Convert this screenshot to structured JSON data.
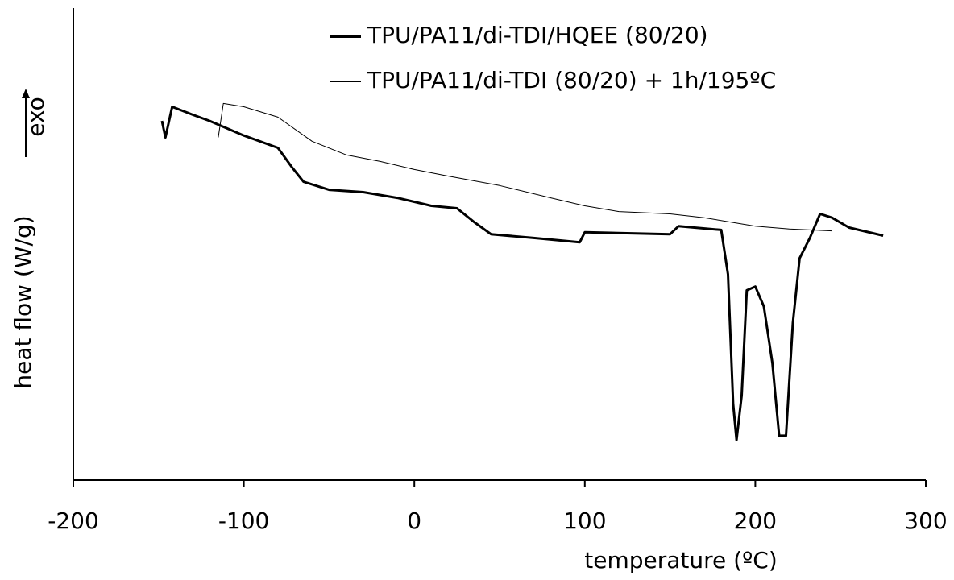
{
  "chart_data": {
    "type": "line",
    "xlabel": "temperature (ºC)",
    "ylabel": "heat flow (W/g)",
    "annotation": "exo",
    "xlim": [
      -200,
      300
    ],
    "xticks": [
      -200,
      -100,
      0,
      100,
      200,
      300
    ],
    "ylim": [
      0,
      100
    ],
    "grid": false,
    "legend": "top",
    "series": [
      {
        "name": "TPU/PA11/di-TDI/HQEE (80/20)",
        "color": "#000000",
        "width": 3,
        "x": [
          -148,
          -146,
          -142,
          -130,
          -120,
          -100,
          -80,
          -72,
          -65,
          -50,
          -30,
          -10,
          10,
          25,
          35,
          45,
          70,
          97,
          100,
          150,
          155,
          180,
          184,
          187,
          189,
          192,
          195,
          200,
          205,
          210,
          214,
          218,
          222,
          226,
          232,
          238,
          245,
          255,
          275
        ],
        "values": [
          76.1,
          72.6,
          79.1,
          77.4,
          76.1,
          73.0,
          70.4,
          66.4,
          63.2,
          61.5,
          61.0,
          59.8,
          58.1,
          57.6,
          54.7,
          52.1,
          51.3,
          50.4,
          52.5,
          52.1,
          53.8,
          53.0,
          43.6,
          16.2,
          8.5,
          17.9,
          40.2,
          41.0,
          36.8,
          24.8,
          9.4,
          9.4,
          33.3,
          47.0,
          51.3,
          56.4,
          55.6,
          53.5,
          51.8
        ]
      },
      {
        "name": "TPU/PA11/di-TDI (80/20) + 1h/195ºC",
        "color": "#000000",
        "width": 1,
        "x": [
          -115,
          -112,
          -100,
          -80,
          -60,
          -40,
          -20,
          0,
          20,
          50,
          80,
          100,
          120,
          150,
          170,
          200,
          220,
          245
        ],
        "values": [
          72.6,
          79.8,
          79.1,
          76.9,
          71.8,
          68.9,
          67.5,
          65.8,
          64.4,
          62.4,
          59.8,
          58.1,
          56.9,
          56.4,
          55.6,
          53.8,
          53.2,
          52.8
        ]
      }
    ]
  }
}
